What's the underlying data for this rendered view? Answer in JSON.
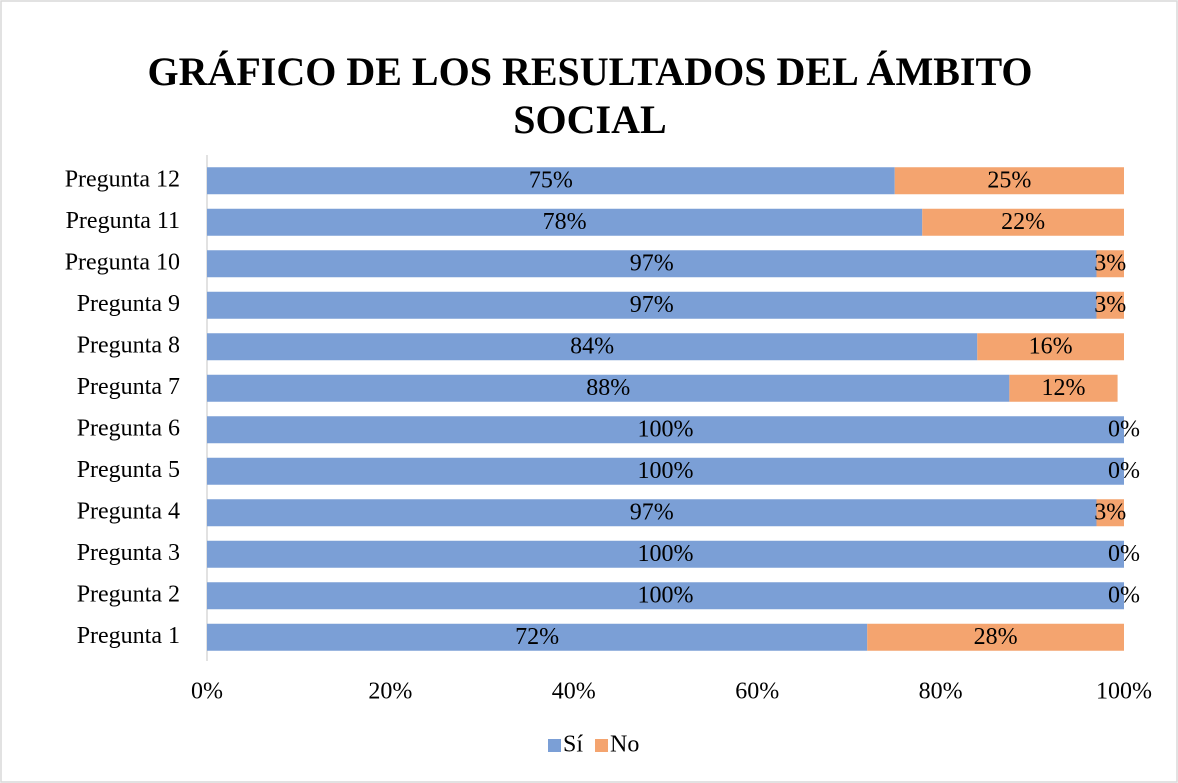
{
  "chart_data": {
    "type": "stacked-bar-horizontal",
    "title": [
      "GRÁFICO DE LOS RESULTADOS DEL ÁMBITO",
      "SOCIAL"
    ],
    "categories": [
      "Pregunta 1",
      "Pregunta 2",
      "Pregunta 3",
      "Pregunta 4",
      "Pregunta 5",
      "Pregunta 6",
      "Pregunta 7",
      "Pregunta 8",
      "Pregunta 9",
      "Pregunta 10",
      "Pregunta 11",
      "Pregunta 12"
    ],
    "series": [
      {
        "name": "Sí",
        "color": "#7b9fd6",
        "values": [
          72,
          100,
          100,
          97,
          100,
          100,
          87.5,
          84,
          97,
          97,
          78,
          75
        ],
        "value_labels": [
          "72%",
          "100%",
          "100%",
          "97%",
          "100%",
          "100%",
          "88%",
          "84%",
          "97%",
          "97%",
          "78%",
          "75%"
        ]
      },
      {
        "name": "No",
        "color": "#f4a46f",
        "values": [
          28,
          0,
          0,
          3,
          0,
          0,
          11.8,
          16,
          3,
          3,
          22,
          25
        ],
        "value_labels": [
          "28%",
          "0%",
          "0%",
          "3%",
          "0%",
          "0%",
          "12%",
          "16%",
          "3%",
          "3%",
          "22%",
          "25%"
        ]
      }
    ],
    "xlim": [
      0,
      100
    ],
    "xticks": [
      {
        "value": 0,
        "label": "0%"
      },
      {
        "value": 20,
        "label": "20%"
      },
      {
        "value": 40,
        "label": "40%"
      },
      {
        "value": 60,
        "label": "60%"
      },
      {
        "value": 80,
        "label": "80%"
      },
      {
        "value": 100,
        "label": "100%"
      }
    ],
    "legend": "bottom"
  }
}
